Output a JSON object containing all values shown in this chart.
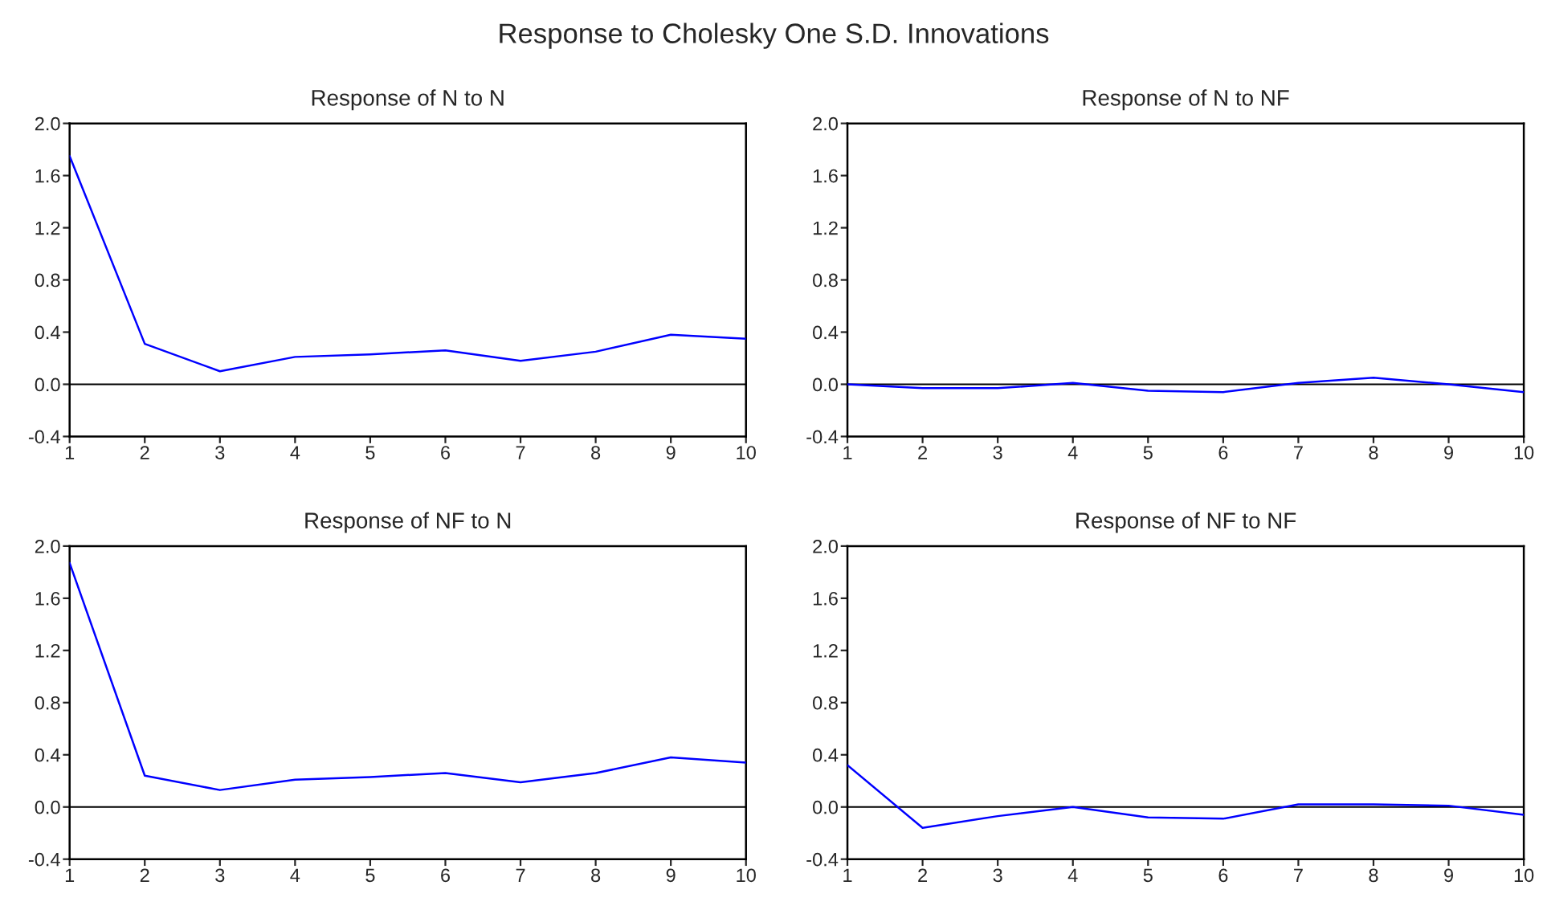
{
  "chart_data": [
    {
      "type": "line",
      "title": "Response of N to N",
      "annotations": [
        "Response to Cholesky One S.D. Innovations"
      ],
      "x": [
        1,
        2,
        3,
        4,
        5,
        6,
        7,
        8,
        9,
        10
      ],
      "xlim": [
        1,
        10
      ],
      "xticks": [
        1,
        2,
        3,
        4,
        5,
        6,
        7,
        8,
        9,
        10
      ],
      "ylim": [
        -0.4,
        2.0
      ],
      "yticks": [
        {
          "value": -0.4,
          "label": "-0.4"
        },
        {
          "value": 0,
          "label": "0.0"
        },
        0.4,
        0.8,
        1.2,
        1.6,
        {
          "value": 2,
          "label": "2.0"
        }
      ],
      "grid": false,
      "legend": false,
      "ref_lines": [
        {
          "axis": "y",
          "value": 0,
          "color": "#000000"
        }
      ],
      "series": [
        {
          "color": "#0000ff",
          "values": [
            1.75,
            0.31,
            0.1,
            0.21,
            0.23,
            0.26,
            0.18,
            0.25,
            0.38,
            0.35
          ]
        }
      ]
    },
    {
      "type": "line",
      "title": "Response of N to NF",
      "x": [
        1,
        2,
        3,
        4,
        5,
        6,
        7,
        8,
        9,
        10
      ],
      "xlim": [
        1,
        10
      ],
      "xticks": [
        1,
        2,
        3,
        4,
        5,
        6,
        7,
        8,
        9,
        10
      ],
      "ylim": [
        -0.4,
        2.0
      ],
      "yticks": [
        {
          "value": -0.4,
          "label": "-0.4"
        },
        {
          "value": 0,
          "label": "0.0"
        },
        0.4,
        0.8,
        1.2,
        1.6,
        {
          "value": 2,
          "label": "2.0"
        }
      ],
      "grid": false,
      "legend": false,
      "ref_lines": [
        {
          "axis": "y",
          "value": 0,
          "color": "#000000"
        }
      ],
      "series": [
        {
          "color": "#0000ff",
          "values": [
            0.0,
            -0.03,
            -0.03,
            0.01,
            -0.05,
            -0.06,
            0.01,
            0.05,
            0.0,
            -0.06
          ]
        }
      ]
    },
    {
      "type": "line",
      "title": "Response of NF to N",
      "x": [
        1,
        2,
        3,
        4,
        5,
        6,
        7,
        8,
        9,
        10
      ],
      "xlim": [
        1,
        10
      ],
      "xticks": [
        1,
        2,
        3,
        4,
        5,
        6,
        7,
        8,
        9,
        10
      ],
      "ylim": [
        -0.4,
        2.0
      ],
      "yticks": [
        {
          "value": -0.4,
          "label": "-0.4"
        },
        {
          "value": 0,
          "label": "0.0"
        },
        0.4,
        0.8,
        1.2,
        1.6,
        {
          "value": 2,
          "label": "2.0"
        }
      ],
      "grid": false,
      "legend": false,
      "ref_lines": [
        {
          "axis": "y",
          "value": 0,
          "color": "#000000"
        }
      ],
      "series": [
        {
          "color": "#0000ff",
          "values": [
            1.87,
            0.24,
            0.13,
            0.21,
            0.23,
            0.26,
            0.19,
            0.26,
            0.38,
            0.34
          ]
        }
      ]
    },
    {
      "type": "line",
      "title": "Response of NF to NF",
      "x": [
        1,
        2,
        3,
        4,
        5,
        6,
        7,
        8,
        9,
        10
      ],
      "xlim": [
        1,
        10
      ],
      "xticks": [
        1,
        2,
        3,
        4,
        5,
        6,
        7,
        8,
        9,
        10
      ],
      "ylim": [
        -0.4,
        2.0
      ],
      "yticks": [
        {
          "value": -0.4,
          "label": "-0.4"
        },
        {
          "value": 0,
          "label": "0.0"
        },
        0.4,
        0.8,
        1.2,
        1.6,
        {
          "value": 2,
          "label": "2.0"
        }
      ],
      "grid": false,
      "legend": false,
      "ref_lines": [
        {
          "axis": "y",
          "value": 0,
          "color": "#000000"
        }
      ],
      "series": [
        {
          "color": "#0000ff",
          "values": [
            0.32,
            -0.16,
            -0.07,
            0.0,
            -0.08,
            -0.09,
            0.02,
            0.02,
            0.01,
            -0.06
          ]
        }
      ]
    }
  ]
}
